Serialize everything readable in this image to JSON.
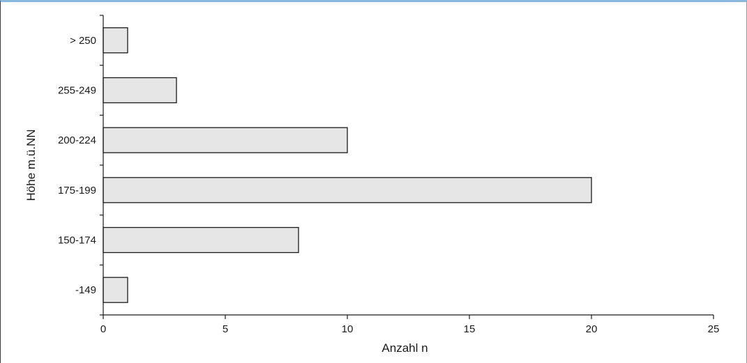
{
  "chart_data": {
    "type": "bar",
    "orientation": "horizontal",
    "categories": [
      "> 250",
      "255-249",
      "200-224",
      "175-199",
      "150-174",
      "-149"
    ],
    "values": [
      1,
      3,
      10,
      20,
      8,
      1
    ],
    "xlabel": "Anzahl n",
    "ylabel": "Höhe m.ü.NN",
    "xlim": [
      0,
      25
    ],
    "xticks": [
      "0",
      "5",
      "10",
      "15",
      "20",
      "25"
    ],
    "grid": false,
    "colors": {
      "bar_fill": "#e6e6e6",
      "bar_stroke": "#1a1a1a",
      "axis": "#1a1a1a"
    }
  }
}
